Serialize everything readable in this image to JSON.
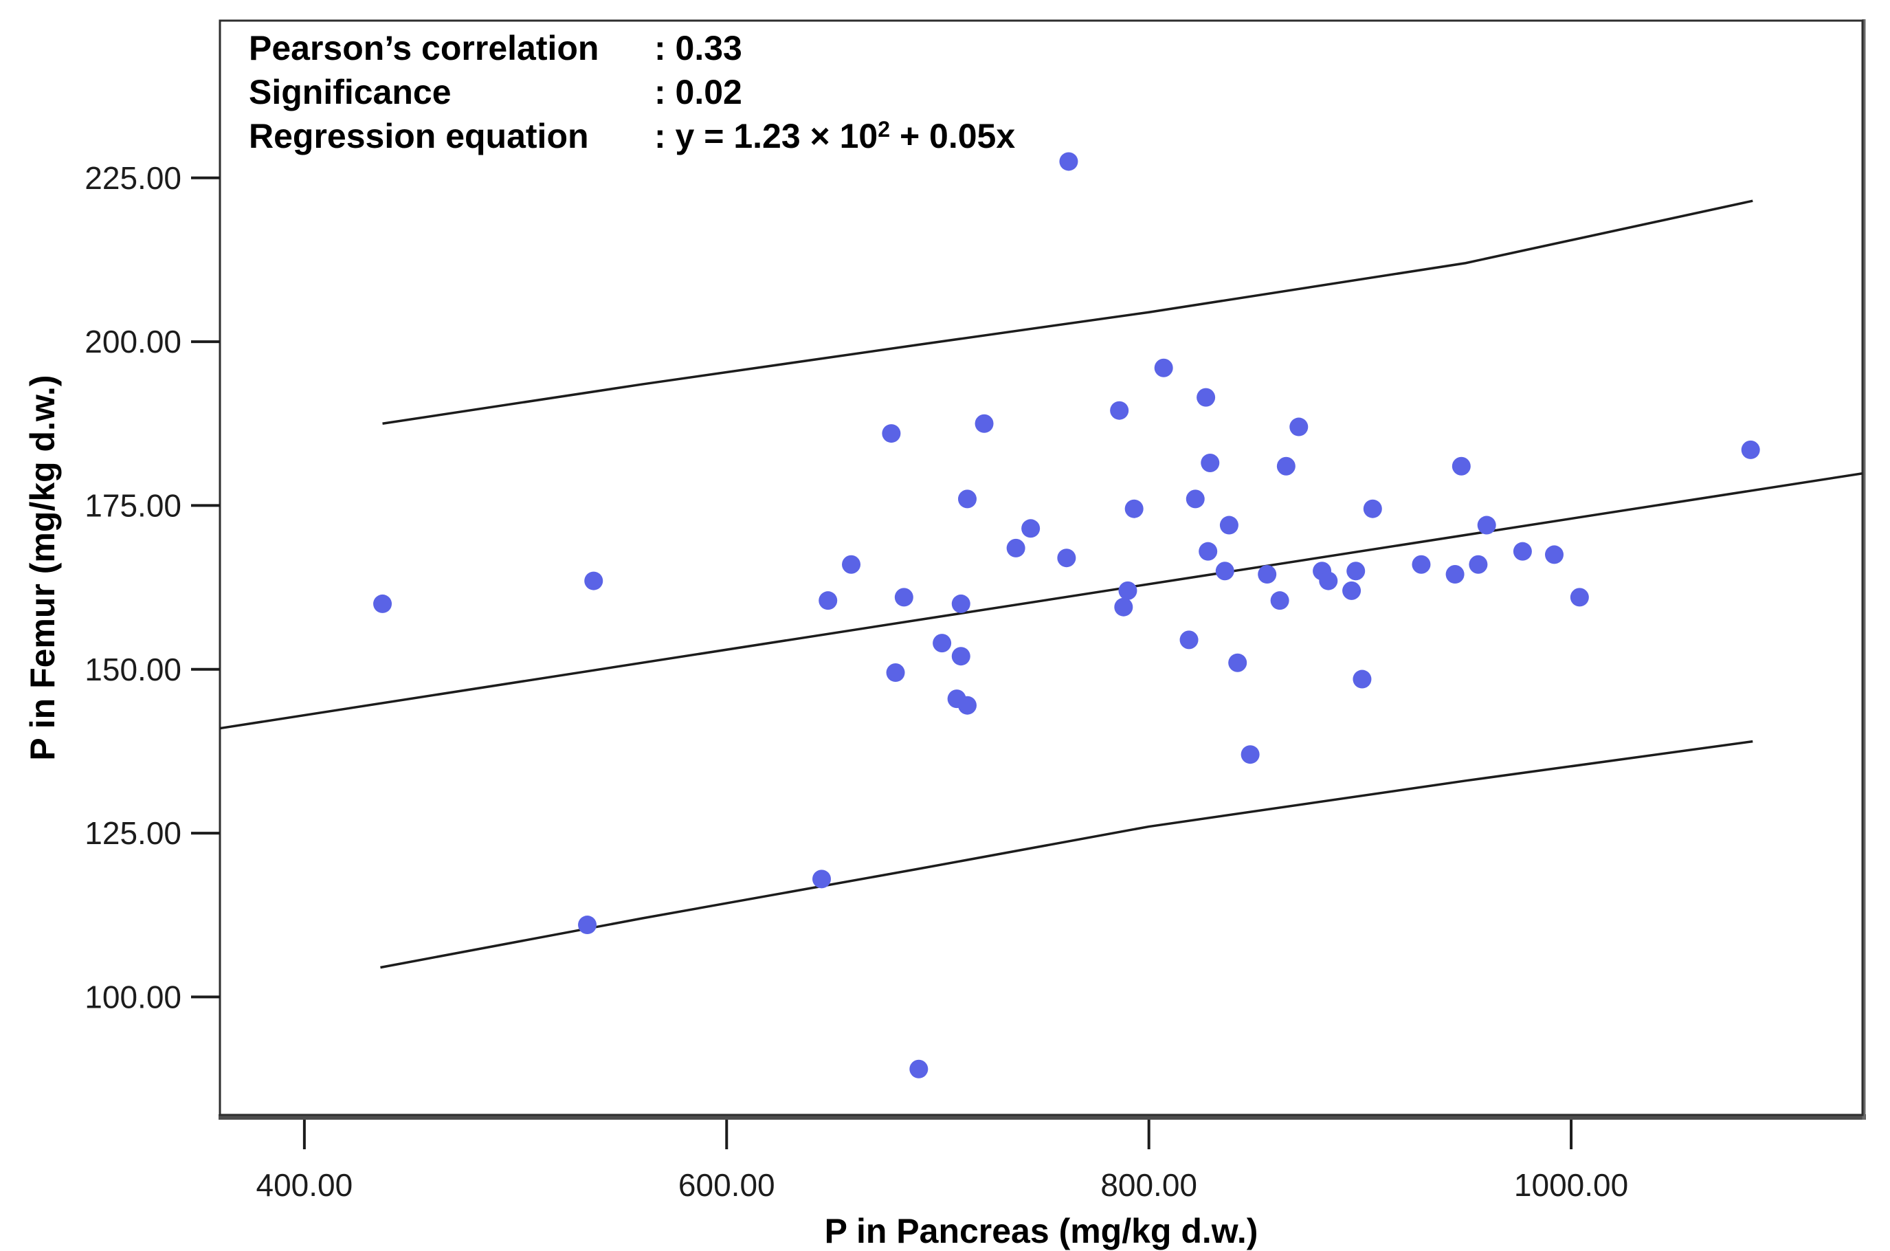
{
  "chart_data": {
    "type": "scatter",
    "xlabel": "P in Pancreas (mg/kg d.w.)",
    "ylabel": "P in Femur (mg/kg d.w.)",
    "x_ticks": [
      400,
      600,
      800,
      1000
    ],
    "y_ticks": [
      100,
      125,
      150,
      175,
      200,
      225
    ],
    "tick_decimals": 2,
    "xlim": [
      360,
      1138
    ],
    "ylim": [
      82,
      249
    ],
    "grid": false,
    "point_color": "#5a63e6",
    "line_color": "#1c1c1c",
    "frame_color": "#2e2e2e",
    "annotation": {
      "rows": [
        {
          "label": "Pearson’s correlation",
          "value": ": 0.33"
        },
        {
          "label": "Significance",
          "value": ": 0.02"
        },
        {
          "label": "Regression equation",
          "value_prefix": ": y = 1.23 × 10",
          "value_sup": "2",
          "value_suffix": " + 0.05x"
        }
      ]
    },
    "regression": {
      "intercept": 123,
      "slope": 0.05,
      "x_range": [
        360,
        1138
      ]
    },
    "ci_upper": [
      [
        437,
        187.5
      ],
      [
        560,
        193.5
      ],
      [
        690,
        199.5
      ],
      [
        800,
        204.5
      ],
      [
        950,
        212
      ],
      [
        1086,
        221.5
      ]
    ],
    "ci_lower": [
      [
        436,
        104.5
      ],
      [
        560,
        112
      ],
      [
        690,
        119.5
      ],
      [
        800,
        126
      ],
      [
        950,
        133
      ],
      [
        1086,
        139
      ]
    ],
    "points": [
      [
        437,
        160
      ],
      [
        537,
        163.5
      ],
      [
        534,
        111
      ],
      [
        645,
        118
      ],
      [
        691,
        89
      ],
      [
        709,
        145.5
      ],
      [
        714,
        144.5
      ],
      [
        702,
        154
      ],
      [
        711,
        152
      ],
      [
        680,
        149.5
      ],
      [
        648,
        160.5
      ],
      [
        684,
        161
      ],
      [
        711,
        160
      ],
      [
        678,
        186
      ],
      [
        722,
        187.5
      ],
      [
        786,
        189.5
      ],
      [
        714,
        176
      ],
      [
        793,
        174.5
      ],
      [
        744,
        171.5
      ],
      [
        737,
        168.5
      ],
      [
        761,
        167
      ],
      [
        659,
        166
      ],
      [
        788,
        159.5
      ],
      [
        790,
        162
      ],
      [
        807,
        196
      ],
      [
        827,
        191.5
      ],
      [
        871,
        187
      ],
      [
        829,
        181.5
      ],
      [
        865,
        181
      ],
      [
        948,
        181
      ],
      [
        822,
        176
      ],
      [
        906,
        174.5
      ],
      [
        960,
        172
      ],
      [
        838,
        172
      ],
      [
        828,
        168
      ],
      [
        836,
        165
      ],
      [
        856,
        164.5
      ],
      [
        882,
        165
      ],
      [
        885,
        163.5
      ],
      [
        898,
        165
      ],
      [
        896,
        162
      ],
      [
        929,
        166
      ],
      [
        945,
        164.5
      ],
      [
        956,
        166
      ],
      [
        819,
        154.5
      ],
      [
        842,
        151
      ],
      [
        901,
        148.5
      ],
      [
        848,
        137
      ],
      [
        862,
        160.5
      ],
      [
        977,
        168
      ],
      [
        992,
        167.5
      ],
      [
        1004,
        161
      ],
      [
        1085,
        183.5
      ],
      [
        762,
        227.5
      ]
    ]
  }
}
